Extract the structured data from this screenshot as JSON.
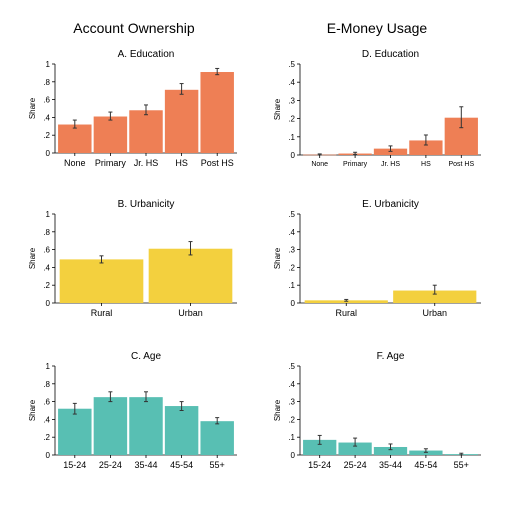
{
  "columns": {
    "left_title": "Account Ownership",
    "right_title": "E-Money Usage"
  },
  "colors": {
    "education": "#ee7f55",
    "urbanicity": "#f3d03e",
    "age": "#58bfb3",
    "error_bar": "#333333",
    "axis": "#000000"
  },
  "chart_data": [
    {
      "id": "A",
      "type": "bar",
      "title": "A. Education",
      "ylabel": "Share",
      "ylim": [
        0,
        1
      ],
      "yticks": [
        0,
        0.2,
        0.4,
        0.6,
        0.8,
        1
      ],
      "ytick_labels": [
        "0",
        ".2",
        ".4",
        ".6",
        ".8",
        "1"
      ],
      "categories": [
        "None",
        "Primary",
        "Jr. HS",
        "HS",
        "Post HS"
      ],
      "values": [
        0.32,
        0.41,
        0.48,
        0.71,
        0.91
      ],
      "ci_low": [
        0.28,
        0.37,
        0.43,
        0.66,
        0.88
      ],
      "ci_high": [
        0.37,
        0.46,
        0.54,
        0.78,
        0.95
      ],
      "color_key": "education"
    },
    {
      "id": "B",
      "type": "bar",
      "title": "B. Urbanicity",
      "ylabel": "Share",
      "ylim": [
        0,
        1
      ],
      "yticks": [
        0,
        0.2,
        0.4,
        0.6,
        0.8,
        1
      ],
      "ytick_labels": [
        "0",
        ".2",
        ".4",
        ".6",
        ".8",
        "1"
      ],
      "categories": [
        "Rural",
        "Urban"
      ],
      "values": [
        0.49,
        0.61
      ],
      "ci_low": [
        0.45,
        0.54
      ],
      "ci_high": [
        0.53,
        0.69
      ],
      "color_key": "urbanicity"
    },
    {
      "id": "C",
      "type": "bar",
      "title": "C. Age",
      "ylabel": "Share",
      "ylim": [
        0,
        1
      ],
      "yticks": [
        0,
        0.2,
        0.4,
        0.6,
        0.8,
        1
      ],
      "ytick_labels": [
        "0",
        ".2",
        ".4",
        ".6",
        ".8",
        "1"
      ],
      "categories": [
        "15-24",
        "25-24",
        "35-44",
        "45-54",
        "55+"
      ],
      "values": [
        0.52,
        0.65,
        0.65,
        0.55,
        0.38
      ],
      "ci_low": [
        0.46,
        0.6,
        0.6,
        0.5,
        0.35
      ],
      "ci_high": [
        0.58,
        0.71,
        0.71,
        0.6,
        0.42
      ],
      "color_key": "age"
    },
    {
      "id": "D",
      "type": "bar",
      "title": "D. Education",
      "ylabel": "Share",
      "ylim": [
        0,
        0.5
      ],
      "yticks": [
        0,
        0.1,
        0.2,
        0.3,
        0.4,
        0.5
      ],
      "ytick_labels": [
        "0",
        ".1",
        ".2",
        ".3",
        ".4",
        ".5"
      ],
      "categories": [
        "None",
        "Primary",
        "Jr. HS",
        "HS",
        "Post HS"
      ],
      "values": [
        0.002,
        0.008,
        0.035,
        0.08,
        0.205
      ],
      "ci_low": [
        0.0,
        0.003,
        0.02,
        0.055,
        0.15
      ],
      "ci_high": [
        0.006,
        0.015,
        0.05,
        0.11,
        0.265
      ],
      "color_key": "education"
    },
    {
      "id": "E",
      "type": "bar",
      "title": "E. Urbanicity",
      "ylabel": "Share",
      "ylim": [
        0,
        0.5
      ],
      "yticks": [
        0,
        0.1,
        0.2,
        0.3,
        0.4,
        0.5
      ],
      "ytick_labels": [
        "0",
        ".1",
        ".2",
        ".3",
        ".4",
        ".5"
      ],
      "categories": [
        "Rural",
        "Urban"
      ],
      "values": [
        0.015,
        0.07
      ],
      "ci_low": [
        0.01,
        0.05
      ],
      "ci_high": [
        0.02,
        0.1
      ],
      "color_key": "urbanicity"
    },
    {
      "id": "F",
      "type": "bar",
      "title": "F. Age",
      "ylabel": "Share",
      "ylim": [
        0,
        0.5
      ],
      "yticks": [
        0,
        0.1,
        0.2,
        0.3,
        0.4,
        0.5
      ],
      "ytick_labels": [
        "0",
        ".1",
        ".2",
        ".3",
        ".4",
        ".5"
      ],
      "categories": [
        "15-24",
        "25-24",
        "35-44",
        "45-54",
        "55+"
      ],
      "values": [
        0.085,
        0.07,
        0.045,
        0.025,
        0.005
      ],
      "ci_low": [
        0.06,
        0.05,
        0.03,
        0.015,
        0.0
      ],
      "ci_high": [
        0.11,
        0.095,
        0.062,
        0.035,
        0.01
      ],
      "color_key": "age"
    }
  ]
}
